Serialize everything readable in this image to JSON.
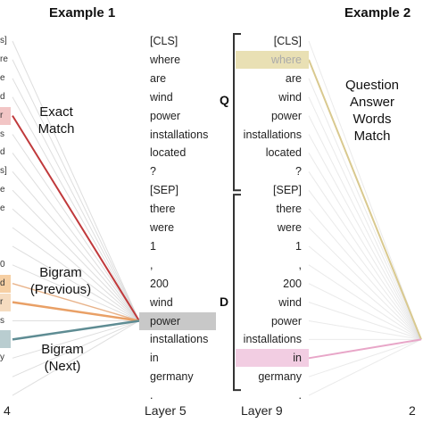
{
  "titles": {
    "example1": "Example 1",
    "example2": "Example 2"
  },
  "annotations": {
    "exact_match": "Exact\nMatch",
    "bigram_previous": "Bigram\n(Previous)",
    "bigram_next": "Bigram\n(Next)",
    "qa_words_match": "Question\nAnswer\nWords\nMatch"
  },
  "layer_labels": {
    "left_edge": "4",
    "layer5": "Layer 5",
    "layer9": "Layer 9"
  },
  "segments": {
    "question": "Q",
    "document": "D"
  },
  "tokens": [
    "[CLS]",
    "where",
    "are",
    "wind",
    "power",
    "installations",
    "located",
    "?",
    "[SEP]",
    "there",
    "were",
    "1",
    ",",
    "200",
    "wind",
    "power",
    "installations",
    "in",
    "germany",
    "."
  ],
  "left_fragments": [
    "s]",
    "re",
    "e",
    "d",
    "r",
    "s",
    "d",
    "s]",
    "e",
    "e",
    "",
    "",
    "0",
    "d",
    "r",
    "s",
    "",
    "y",
    ""
  ],
  "colors": {
    "exact_match_line": "#c0393b",
    "bigram_previous_line": "#e9a066",
    "bigram_next_line": "#5e8c93",
    "layer5_focus_highlight": "#c8c8c8",
    "where_highlight": "#e9e0b4",
    "in_highlight": "#f2cde2",
    "qa_line": "#d9c98f",
    "in_line": "#e8a6c8"
  }
}
